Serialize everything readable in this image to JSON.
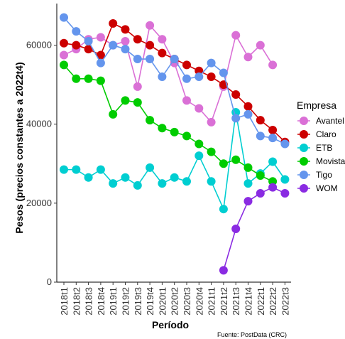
{
  "chart_data": {
    "type": "line",
    "xlabel": "Período",
    "ylabel": "Pesos (precios constantes a 2022t4)",
    "caption": "Fuente: PostData (CRC)",
    "legend_title": "Empresa",
    "legend_position": "right",
    "grid": false,
    "ylim": [
      0,
      70000
    ],
    "y_ticks": [
      0,
      20000,
      40000,
      60000
    ],
    "y_tick_labels": [
      "0",
      "20000",
      "40000",
      "60000"
    ],
    "categories": [
      "2018t1",
      "2018t2",
      "2018t3",
      "2018t4",
      "2019t1",
      "2019t2",
      "2019t3",
      "2019t4",
      "2020t1",
      "2020t2",
      "2020t3",
      "2020t4",
      "2021t1",
      "2021t2",
      "2021t3",
      "2021t4",
      "2022t1",
      "2022t2",
      "2022t3"
    ],
    "series": [
      {
        "name": "Avantel",
        "color": "#da70d6",
        "values": [
          57500,
          59000,
          61500,
          62000,
          60000,
          61000,
          49500,
          65000,
          61500,
          55500,
          46000,
          44000,
          40500,
          49500,
          62500,
          57000,
          60000,
          55000,
          null
        ]
      },
      {
        "name": "Claro",
        "color": "#cc0000",
        "values": [
          60500,
          60000,
          59000,
          57500,
          65500,
          64000,
          61500,
          60000,
          58000,
          56500,
          55000,
          53500,
          52000,
          50000,
          47500,
          44500,
          41000,
          38500,
          35500
        ]
      },
      {
        "name": "ETB",
        "color": "#00ced1",
        "values": [
          28500,
          28500,
          26500,
          28500,
          25000,
          26500,
          24500,
          29000,
          25000,
          26500,
          25500,
          32000,
          25500,
          18500,
          43000,
          25000,
          27500,
          30500,
          26000
        ]
      },
      {
        "name": "Movistar",
        "color": "#00cc00",
        "values": [
          55000,
          51500,
          51500,
          51000,
          42500,
          46000,
          45500,
          41000,
          39000,
          38000,
          37000,
          35000,
          33000,
          30000,
          31000,
          29000,
          27000,
          25500,
          null
        ]
      },
      {
        "name": "Tigo",
        "color": "#6495ed",
        "values": [
          67000,
          63500,
          61000,
          55500,
          60000,
          59000,
          56500,
          56500,
          52000,
          56500,
          51500,
          52000,
          55500,
          53000,
          41500,
          42500,
          37000,
          36500,
          35000
        ]
      },
      {
        "name": "WOM",
        "color": "#8a2be2",
        "values": [
          null,
          null,
          null,
          null,
          null,
          null,
          null,
          null,
          null,
          null,
          null,
          null,
          null,
          3000,
          13500,
          20500,
          22500,
          24000,
          22500
        ]
      }
    ]
  }
}
